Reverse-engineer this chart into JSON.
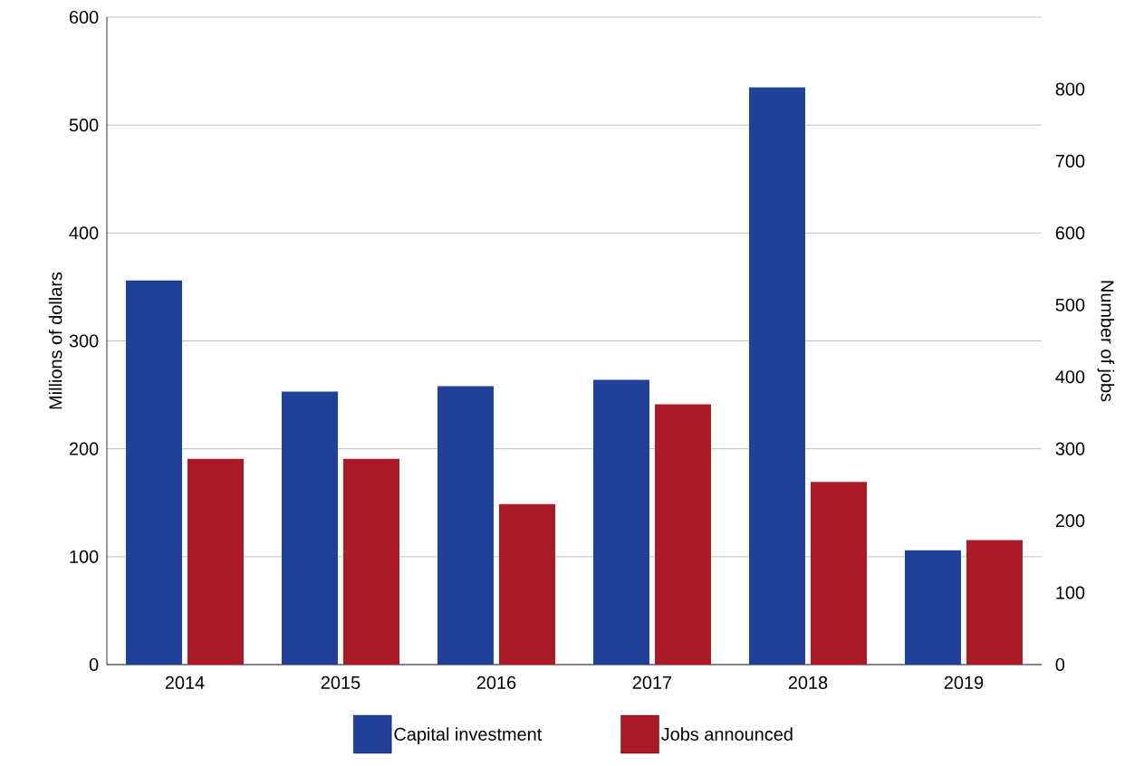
{
  "chart_data": {
    "type": "bar",
    "ylabel": "Millions of dollars",
    "y2label": "Number of jobs",
    "categories": [
      "2014",
      "2015",
      "2016",
      "2017",
      "2018",
      "2019"
    ],
    "series": [
      {
        "name": "Capital investment",
        "color": "#21409a",
        "values": [
          356,
          253,
          258,
          264,
          535,
          106
        ]
      },
      {
        "name": "Jobs announced",
        "color": "#ab1a27",
        "axis": "y2",
        "values": [
          286,
          286,
          223,
          362,
          254,
          173
        ]
      }
    ],
    "ylim": [
      0,
      600
    ],
    "yticks": [
      0,
      100,
      200,
      300,
      400,
      500,
      600
    ],
    "y2lim": [
      0,
      900
    ],
    "y2ticks": [
      0,
      100,
      200,
      300,
      400,
      500,
      600,
      700,
      800
    ],
    "grid": "y",
    "legend": "bottom"
  }
}
